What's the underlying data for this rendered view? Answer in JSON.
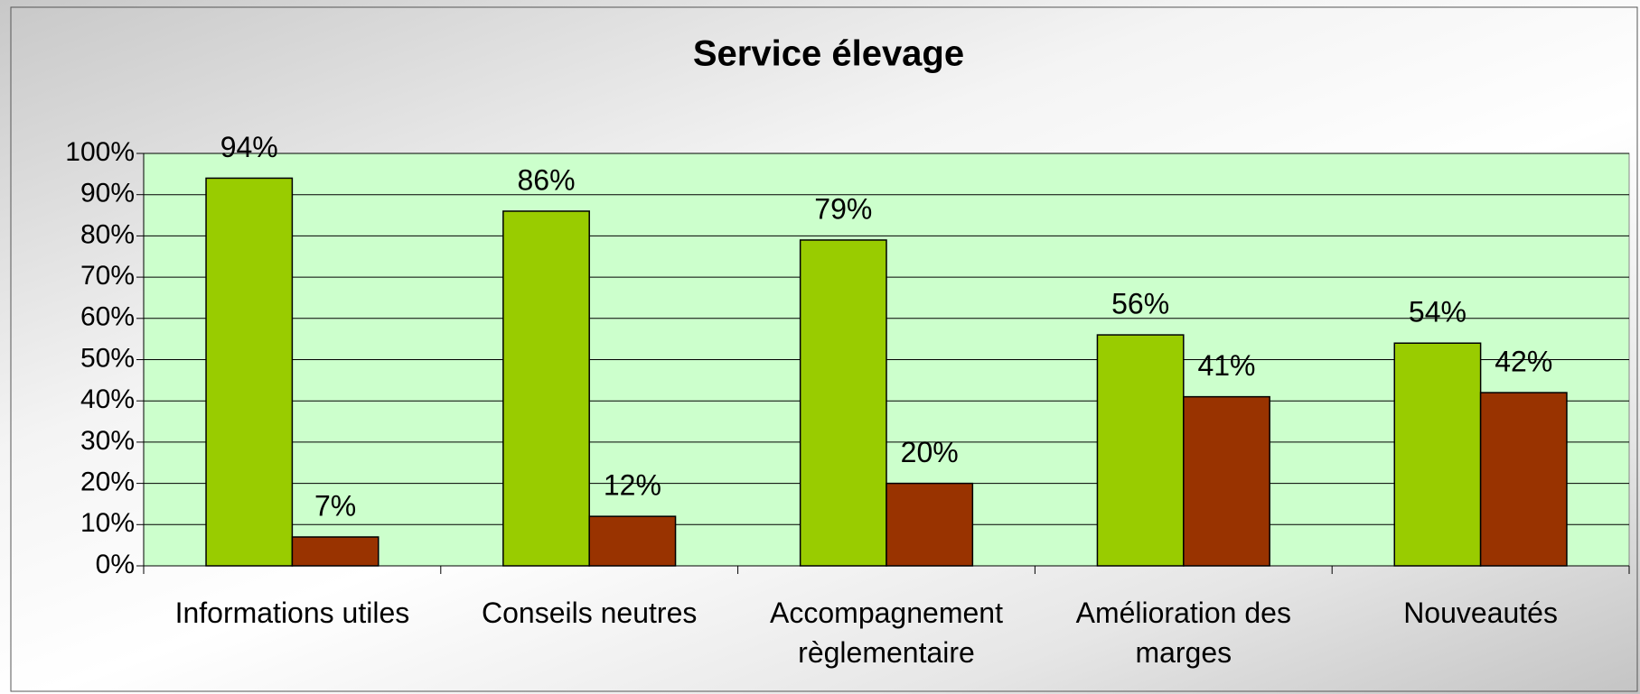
{
  "chart_data": {
    "type": "bar",
    "title": "Service élevage",
    "categories": [
      "Informations utiles",
      "Conseils neutres",
      "Accompagnement règlementaire",
      "Amélioration des marges",
      "Nouveautés"
    ],
    "series": [
      {
        "color": "#99cc00",
        "values": [
          94,
          86,
          79,
          56,
          54
        ],
        "value_labels": [
          "94%",
          "86%",
          "79%",
          "56%",
          "54%"
        ]
      },
      {
        "color": "#993300",
        "values": [
          7,
          12,
          20,
          41,
          42
        ],
        "value_labels": [
          "7%",
          "12%",
          "20%",
          "41%",
          "42%"
        ]
      }
    ],
    "ylim": [
      0,
      100
    ],
    "yticks": [
      {
        "value": 0,
        "label": "0%"
      },
      {
        "value": 10,
        "label": "10%"
      },
      {
        "value": 20,
        "label": "20%"
      },
      {
        "value": 30,
        "label": "30%"
      },
      {
        "value": 40,
        "label": "40%"
      },
      {
        "value": 50,
        "label": "50%"
      },
      {
        "value": 60,
        "label": "60%"
      },
      {
        "value": 70,
        "label": "70%"
      },
      {
        "value": 80,
        "label": "80%"
      },
      {
        "value": 90,
        "label": "90%"
      },
      {
        "value": 100,
        "label": "100%"
      }
    ],
    "grid": true,
    "plot_background": "#ccffcc"
  }
}
